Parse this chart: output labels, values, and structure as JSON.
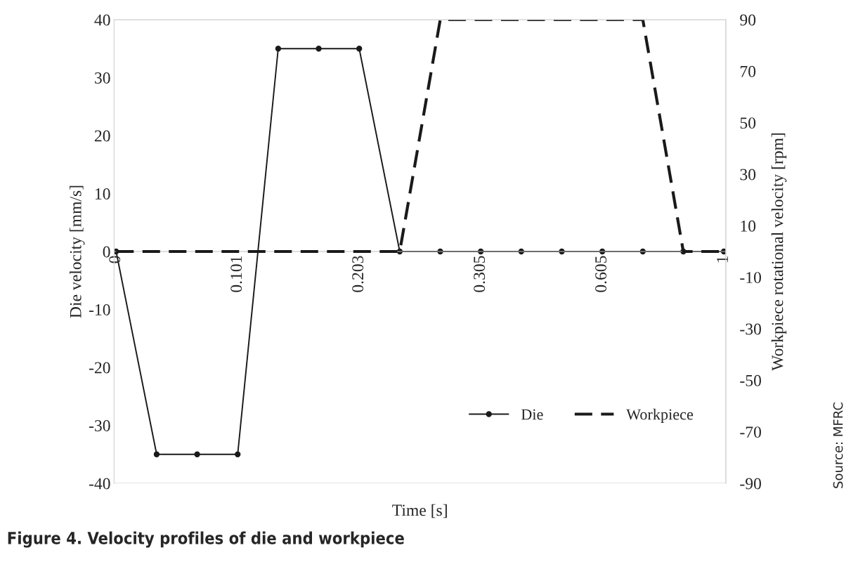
{
  "chart_data": {
    "type": "line",
    "title": "Figure 4. Velocity profiles of die and workpiece",
    "xlabel": "Time [s]",
    "ylabel": "Die velocity [mm/s]",
    "y2label": "Workpiece rotational velocity [rpm]",
    "categories": [
      "0",
      null,
      null,
      "0.101",
      null,
      null,
      "0.203",
      null,
      null,
      "0.305",
      null,
      null,
      "0.605",
      null,
      null,
      "1"
    ],
    "series": [
      {
        "name": "Die",
        "color": "#1a1a1a",
        "marker": "circle",
        "line_style": "solid",
        "values": [
          0,
          -35,
          -35,
          -35,
          35,
          35,
          35,
          0,
          0,
          0,
          0,
          0,
          0,
          0,
          0,
          0
        ]
      },
      {
        "name": "Workpiece",
        "color": "#1a1a1a",
        "marker": "none",
        "line_style": "dashed",
        "axis": "y2",
        "values": [
          0,
          0,
          0,
          0,
          0,
          0,
          0,
          0,
          90,
          90,
          90,
          90,
          90,
          90,
          0,
          0
        ]
      }
    ],
    "ylim": [
      -40,
      40
    ],
    "yticks": [
      -40,
      -30,
      -20,
      -10,
      0,
      10,
      20,
      30,
      40
    ],
    "y2lim": [
      -90,
      90
    ],
    "y2ticks": [
      -90,
      -70,
      -50,
      -30,
      -10,
      10,
      30,
      50,
      70,
      90
    ],
    "grid": false,
    "legend": "bottom right",
    "annotations": [
      "Source: MFRC"
    ]
  }
}
